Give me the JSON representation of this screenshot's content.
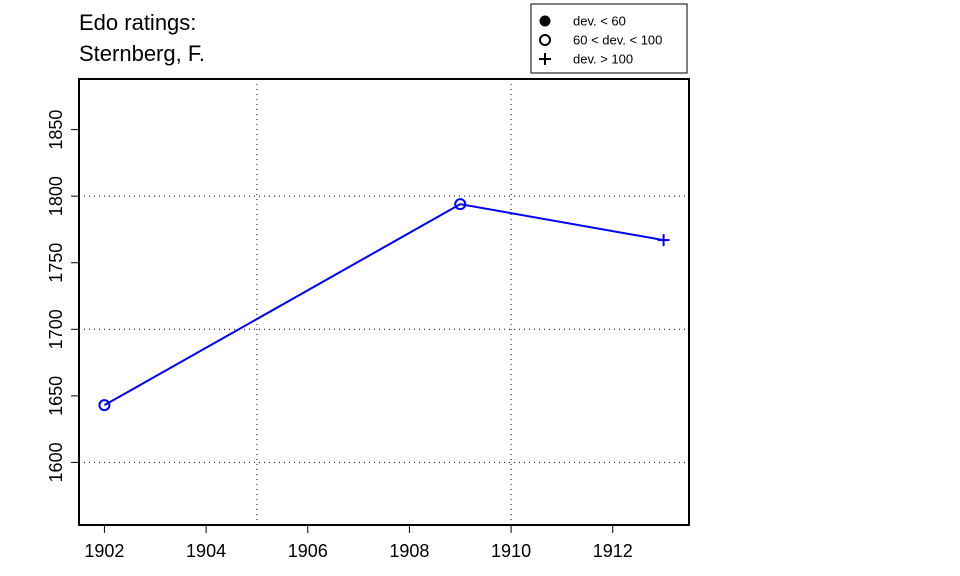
{
  "chart_data": {
    "type": "line",
    "title_lines": [
      "Edo ratings:",
      "Sternberg, F."
    ],
    "xlabel": "",
    "ylabel": "",
    "xlim": [
      1901.5,
      1913.5
    ],
    "ylim": [
      1553,
      1888
    ],
    "x_ticks": [
      1902,
      1904,
      1906,
      1908,
      1910,
      1912
    ],
    "y_ticks": [
      1600,
      1650,
      1700,
      1750,
      1800,
      1850
    ],
    "grid_x": [
      1905,
      1910
    ],
    "grid_y": [
      1600,
      1700,
      1800
    ],
    "grid": true,
    "legend_position": "top-right",
    "legend": [
      {
        "marker": "filled-circle",
        "label": "dev. < 60"
      },
      {
        "marker": "open-circle",
        "label": "60 < dev. < 100"
      },
      {
        "marker": "plus",
        "label": "dev. > 100"
      }
    ],
    "series": [
      {
        "color": "#0000ee",
        "points": [
          {
            "x": 1902,
            "y": 1643,
            "marker": "open-circle"
          },
          {
            "x": 1909,
            "y": 1794,
            "marker": "open-circle"
          },
          {
            "x": 1913,
            "y": 1767,
            "marker": "plus"
          }
        ]
      }
    ]
  }
}
